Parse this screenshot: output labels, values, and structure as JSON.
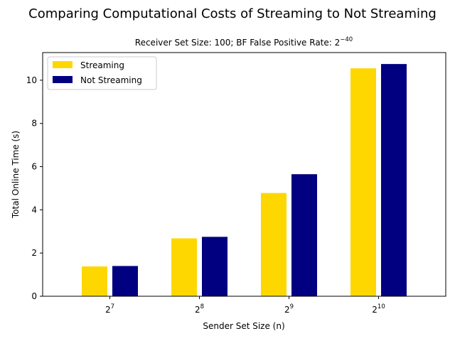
{
  "chart_data": {
    "type": "bar",
    "title": "Comparing Computational Costs of Streaming to Not Streaming",
    "subtitle": {
      "text": "Receiver Set Size: 100; BF False Positive Rate: 2",
      "exponent": "−40"
    },
    "xlabel": "Sender Set Size (n)",
    "ylabel": "Total Online Time (s)",
    "categories": [
      {
        "base": "2",
        "exp": "7"
      },
      {
        "base": "2",
        "exp": "8"
      },
      {
        "base": "2",
        "exp": "9"
      },
      {
        "base": "2",
        "exp": "10"
      }
    ],
    "series": [
      {
        "name": "Streaming",
        "color": "#ffd700",
        "values": [
          1.38,
          2.68,
          4.78,
          10.55
        ]
      },
      {
        "name": "Not Streaming",
        "color": "#000080",
        "values": [
          1.4,
          2.75,
          5.65,
          10.75
        ]
      }
    ],
    "ylim": [
      0,
      11.28
    ],
    "yticks": [
      0,
      2,
      4,
      6,
      8,
      10
    ],
    "legend": "top-left",
    "grid": false
  }
}
